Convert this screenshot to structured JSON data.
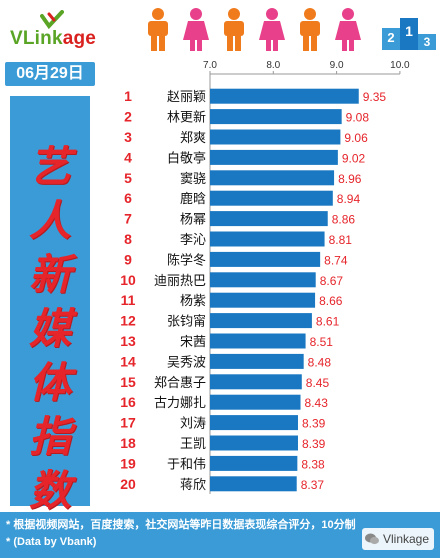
{
  "brand": {
    "logo_prefix": "VLink",
    "logo_suffix": "age"
  },
  "date": "06月29日",
  "side_title": [
    "艺",
    "人",
    "新",
    "媒",
    "体",
    "指",
    "数"
  ],
  "footer": {
    "note": "* 根据视频网站，百度搜索，社交网站等昨日数据表现综合评分，10分制",
    "credit": "* (Data by Vbank)"
  },
  "watermark": "Vlinkage",
  "podium_numbers": [
    "2",
    "1",
    "3"
  ],
  "colors": {
    "bar": "#1a78c2",
    "rank": "#e6252b",
    "value": "#e6252b",
    "banner": "#3a9bd6",
    "title": "#e6252b",
    "person_male": "#f07b1d",
    "person_female": "#e8408a"
  },
  "icons": [
    "male-person-icon",
    "female-person-icon",
    "podium-icon",
    "wechat-icon"
  ],
  "chart_data": {
    "type": "bar",
    "orientation": "horizontal",
    "categories": [
      "赵丽颖",
      "林更新",
      "郑爽",
      "白敬亭",
      "窦骁",
      "鹿晗",
      "杨幂",
      "李沁",
      "陈学冬",
      "迪丽热巴",
      "杨紫",
      "张钧甯",
      "宋茜",
      "吴秀波",
      "郑合惠子",
      "古力娜扎",
      "刘涛",
      "王凯",
      "于和伟",
      "蒋欣"
    ],
    "ranks": [
      "1",
      "2",
      "3",
      "4",
      "5",
      "6",
      "7",
      "8",
      "9",
      "10",
      "11",
      "12",
      "13",
      "14",
      "15",
      "16",
      "17",
      "18",
      "19",
      "20"
    ],
    "values": [
      9.35,
      9.08,
      9.06,
      9.02,
      8.96,
      8.94,
      8.86,
      8.81,
      8.74,
      8.67,
      8.66,
      8.61,
      8.51,
      8.48,
      8.45,
      8.43,
      8.39,
      8.39,
      8.38,
      8.37
    ],
    "xticks": [
      "7.0",
      "8.0",
      "9.0",
      "10.0"
    ],
    "xlim": [
      7.0,
      10.0
    ],
    "axis_position": "top",
    "grid": false,
    "title": "",
    "xlabel": "",
    "ylabel": ""
  }
}
